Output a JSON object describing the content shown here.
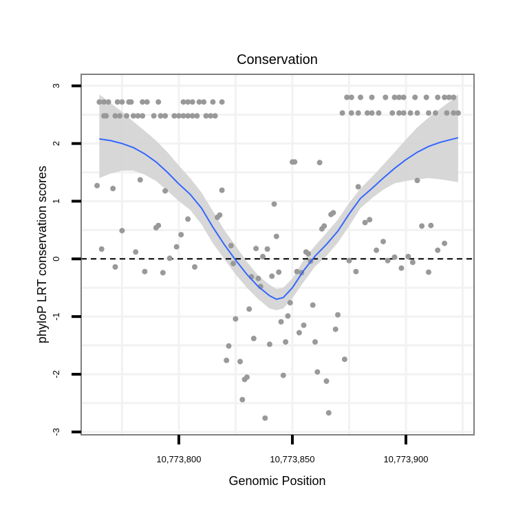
{
  "chart_data": {
    "type": "scatter",
    "title": "Conservation",
    "xlabel": "Genomic Position",
    "ylabel": "phyloP LRT conservation scores",
    "xlim": [
      10773757,
      10773930
    ],
    "ylim": [
      -3.05,
      3.2
    ],
    "x_ticks": [
      10773800,
      10773850,
      10773900
    ],
    "x_tick_labels": [
      "10,773,800",
      "10,773,850",
      "10,773,900"
    ],
    "y_ticks": [
      -3,
      -2,
      -1,
      0,
      1,
      2,
      3
    ],
    "y_tick_labels": [
      "-3",
      "-2",
      "-1",
      "0",
      "1",
      "2",
      "3"
    ],
    "grid": true,
    "reference_line": {
      "y": 0,
      "style": "dashed",
      "color": "#000000"
    },
    "colors": {
      "points": "#999999",
      "smooth_line": "#3366ff",
      "confidence_band": "#d3d3d3",
      "panel_border": "#7f7f7f",
      "grid": "#f2f2f2"
    },
    "series": [
      {
        "type": "scatter",
        "points": [
          [
            10773765,
            2.72
          ],
          [
            10773767,
            2.72
          ],
          [
            10773769,
            2.72
          ],
          [
            10773773,
            2.72
          ],
          [
            10773775,
            2.72
          ],
          [
            10773778,
            2.72
          ],
          [
            10773779,
            2.72
          ],
          [
            10773784,
            2.72
          ],
          [
            10773786,
            2.72
          ],
          [
            10773791,
            2.72
          ],
          [
            10773802,
            2.72
          ],
          [
            10773804,
            2.72
          ],
          [
            10773806,
            2.72
          ],
          [
            10773809,
            2.72
          ],
          [
            10773811,
            2.72
          ],
          [
            10773815,
            2.72
          ],
          [
            10773819,
            2.72
          ],
          [
            10773767,
            2.48
          ],
          [
            10773768,
            2.48
          ],
          [
            10773772,
            2.48
          ],
          [
            10773774,
            2.48
          ],
          [
            10773777,
            2.48
          ],
          [
            10773780,
            2.48
          ],
          [
            10773782,
            2.48
          ],
          [
            10773784,
            2.48
          ],
          [
            10773789,
            2.48
          ],
          [
            10773792,
            2.48
          ],
          [
            10773794,
            2.48
          ],
          [
            10773798,
            2.48
          ],
          [
            10773800,
            2.48
          ],
          [
            10773802,
            2.48
          ],
          [
            10773804,
            2.48
          ],
          [
            10773806,
            2.48
          ],
          [
            10773808,
            2.48
          ],
          [
            10773812,
            2.48
          ],
          [
            10773814,
            2.48
          ],
          [
            10773816,
            2.48
          ],
          [
            10773874,
            2.8
          ],
          [
            10773876,
            2.8
          ],
          [
            10773880,
            2.8
          ],
          [
            10773885,
            2.8
          ],
          [
            10773891,
            2.8
          ],
          [
            10773895,
            2.8
          ],
          [
            10773897,
            2.8
          ],
          [
            10773899,
            2.8
          ],
          [
            10773904,
            2.8
          ],
          [
            10773909,
            2.8
          ],
          [
            10773914,
            2.8
          ],
          [
            10773917,
            2.8
          ],
          [
            10773919,
            2.8
          ],
          [
            10773921,
            2.8
          ],
          [
            10773872,
            2.53
          ],
          [
            10773876,
            2.53
          ],
          [
            10773879,
            2.53
          ],
          [
            10773883,
            2.53
          ],
          [
            10773885,
            2.53
          ],
          [
            10773888,
            2.53
          ],
          [
            10773894,
            2.53
          ],
          [
            10773897,
            2.53
          ],
          [
            10773899,
            2.53
          ],
          [
            10773902,
            2.53
          ],
          [
            10773905,
            2.53
          ],
          [
            10773910,
            2.53
          ],
          [
            10773913,
            2.53
          ],
          [
            10773918,
            2.53
          ],
          [
            10773921,
            2.53
          ],
          [
            10773923,
            2.53
          ],
          [
            10773764,
            1.27
          ],
          [
            10773766,
            0.17
          ],
          [
            10773771,
            1.22
          ],
          [
            10773772,
            -0.14
          ],
          [
            10773775,
            0.49
          ],
          [
            10773781,
            0.12
          ],
          [
            10773783,
            1.37
          ],
          [
            10773785,
            -0.22
          ],
          [
            10773790,
            0.54
          ],
          [
            10773791,
            0.58
          ],
          [
            10773793,
            -0.24
          ],
          [
            10773794,
            1.18
          ],
          [
            10773796,
            0.01
          ],
          [
            10773799,
            0.21
          ],
          [
            10773801,
            0.42
          ],
          [
            10773804,
            0.69
          ],
          [
            10773807,
            -0.14
          ],
          [
            10773817,
            0.72
          ],
          [
            10773818,
            0.76
          ],
          [
            10773819,
            1.19
          ],
          [
            10773821,
            -1.76
          ],
          [
            10773822,
            -1.51
          ],
          [
            10773823,
            0.23
          ],
          [
            10773824,
            -0.08
          ],
          [
            10773825,
            -1.04
          ],
          [
            10773827,
            -1.78
          ],
          [
            10773828,
            -2.44
          ],
          [
            10773829,
            -2.09
          ],
          [
            10773830,
            -2.05
          ],
          [
            10773831,
            -0.87
          ],
          [
            10773832,
            -0.31
          ],
          [
            10773833,
            -1.38
          ],
          [
            10773834,
            0.18
          ],
          [
            10773835,
            -0.34
          ],
          [
            10773836,
            -0.48
          ],
          [
            10773837,
            0.04
          ],
          [
            10773838,
            -2.76
          ],
          [
            10773839,
            0.17
          ],
          [
            10773840,
            -1.48
          ],
          [
            10773841,
            -0.3
          ],
          [
            10773842,
            0.95
          ],
          [
            10773843,
            0.39
          ],
          [
            10773844,
            -0.23
          ],
          [
            10773845,
            -1.09
          ],
          [
            10773846,
            -2.02
          ],
          [
            10773847,
            -1.44
          ],
          [
            10773848,
            -0.99
          ],
          [
            10773849,
            -0.76
          ],
          [
            10773850,
            1.68
          ],
          [
            10773851,
            1.68
          ],
          [
            10773852,
            -0.22
          ],
          [
            10773853,
            -1.28
          ],
          [
            10773854,
            -0.24
          ],
          [
            10773855,
            -1.15
          ],
          [
            10773856,
            0.12
          ],
          [
            10773857,
            0.09
          ],
          [
            10773858,
            -0.04
          ],
          [
            10773859,
            -0.8
          ],
          [
            10773860,
            -1.44
          ],
          [
            10773861,
            -1.96
          ],
          [
            10773862,
            1.67
          ],
          [
            10773863,
            0.52
          ],
          [
            10773864,
            0.57
          ],
          [
            10773865,
            -2.12
          ],
          [
            10773866,
            -2.67
          ],
          [
            10773867,
            0.77
          ],
          [
            10773868,
            0.8
          ],
          [
            10773869,
            -1.22
          ],
          [
            10773870,
            -0.97
          ],
          [
            10773873,
            -1.74
          ],
          [
            10773875,
            -0.03
          ],
          [
            10773878,
            -0.22
          ],
          [
            10773879,
            1.25
          ],
          [
            10773882,
            0.63
          ],
          [
            10773884,
            0.68
          ],
          [
            10773887,
            0.15
          ],
          [
            10773890,
            0.3
          ],
          [
            10773892,
            -0.03
          ],
          [
            10773895,
            0.03
          ],
          [
            10773898,
            -0.16
          ],
          [
            10773901,
            0.04
          ],
          [
            10773903,
            -0.06
          ],
          [
            10773905,
            1.36
          ],
          [
            10773907,
            0.57
          ],
          [
            10773910,
            -0.23
          ],
          [
            10773911,
            0.58
          ],
          [
            10773914,
            0.15
          ],
          [
            10773917,
            0.27
          ]
        ]
      },
      {
        "type": "line",
        "smooth_x": [
          10773765,
          10773770,
          10773775,
          10773780,
          10773785,
          10773790,
          10773795,
          10773800,
          10773805,
          10773810,
          10773815,
          10773820,
          10773825,
          10773830,
          10773835,
          10773840,
          10773843,
          10773846,
          10773850,
          10773855,
          10773860,
          10773865,
          10773870,
          10773875,
          10773880,
          10773885,
          10773890,
          10773895,
          10773900,
          10773905,
          10773910,
          10773915,
          10773920,
          10773923
        ],
        "smooth_y": [
          2.08,
          2.05,
          2.0,
          1.93,
          1.82,
          1.68,
          1.5,
          1.3,
          1.12,
          0.88,
          0.55,
          0.25,
          -0.02,
          -0.27,
          -0.48,
          -0.64,
          -0.7,
          -0.67,
          -0.5,
          -0.2,
          0.05,
          0.25,
          0.48,
          0.78,
          1.05,
          1.22,
          1.4,
          1.57,
          1.72,
          1.85,
          1.95,
          2.02,
          2.07,
          2.1
        ],
        "ci_upper": [
          2.85,
          2.7,
          2.55,
          2.38,
          2.22,
          2.05,
          1.85,
          1.62,
          1.4,
          1.15,
          0.83,
          0.5,
          0.23,
          -0.05,
          -0.29,
          -0.45,
          -0.52,
          -0.5,
          -0.34,
          -0.02,
          0.23,
          0.45,
          0.68,
          0.97,
          1.22,
          1.42,
          1.63,
          1.85,
          2.07,
          2.28,
          2.45,
          2.6,
          2.75,
          2.85
        ],
        "ci_lower": [
          1.4,
          1.48,
          1.53,
          1.53,
          1.46,
          1.35,
          1.18,
          1.0,
          0.85,
          0.6,
          0.27,
          0.0,
          -0.27,
          -0.5,
          -0.7,
          -0.86,
          -0.89,
          -0.86,
          -0.68,
          -0.4,
          -0.13,
          0.05,
          0.28,
          0.57,
          0.88,
          1.05,
          1.2,
          1.31,
          1.35,
          1.38,
          1.4,
          1.38,
          1.35,
          1.33
        ]
      }
    ]
  }
}
